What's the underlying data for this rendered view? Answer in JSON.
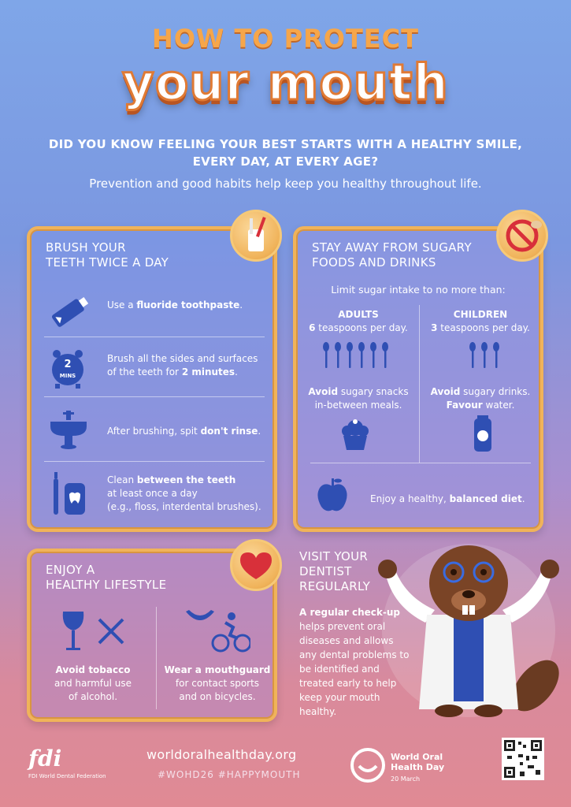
{
  "header": {
    "title_top": "HOW TO PROTECT",
    "title_main": "your mouth",
    "question_line1": "DID YOU KNOW FEELING YOUR BEST STARTS WITH A HEALTHY SMILE,",
    "question_line2": "EVERY DAY, AT EVERY AGE?",
    "subtitle": "Prevention and good habits help keep you healthy throughout life."
  },
  "brush": {
    "title_line1": "BRUSH YOUR",
    "title_line2": "TEETH TWICE A DAY",
    "row1_pre": "Use a ",
    "row1_bold": "fluoride toothpaste",
    "row1_post": ".",
    "row2_line1": "Brush all the sides and surfaces",
    "row2_pre": "of the teeth for ",
    "row2_bold": "2 minutes",
    "row2_post": ".",
    "clock_num": "2",
    "clock_unit": "MINS",
    "row3_pre": "After brushing, spit ",
    "row3_bold": "don't rinse",
    "row3_post": ".",
    "row4_bold": "between the teeth",
    "row4_pre": "Clean ",
    "row4_line2": "at least once a day",
    "row4_line3": "(e.g., floss, interdental brushes)."
  },
  "sugar": {
    "title_line1": "STAY AWAY FROM SUGARY",
    "title_line2": "FOODS AND DRINKS",
    "limit": "Limit sugar intake to no more than:",
    "adults_label": "ADULTS",
    "adults_num": "6",
    "adults_text": " teaspoons per day.",
    "children_label": "CHILDREN",
    "children_num": "3",
    "children_text": " teaspoons per day.",
    "snacks_bold": "Avoid",
    "snacks_line1": " sugary snacks",
    "snacks_line2": "in-between meals.",
    "drinks_bold": "Avoid",
    "drinks_line1": " sugary drinks.",
    "drinks_bold2": "Favour",
    "drinks_line2": " water.",
    "diet_pre": "Enjoy a healthy, ",
    "diet_bold": "balanced diet",
    "diet_post": "."
  },
  "lifestyle": {
    "title_line1": "ENJOY A",
    "title_line2": "HEALTHY LIFESTYLE",
    "tobacco_bold": "Avoid tobacco",
    "tobacco_line2": "and harmful use",
    "tobacco_line3": "of alcohol.",
    "guard_bold": "Wear a mouthguard",
    "guard_line2": "for contact sports",
    "guard_line3": "and on bicycles."
  },
  "visit": {
    "title_line1": "VISIT YOUR",
    "title_line2": "DENTIST",
    "title_line3": "REGULARLY",
    "text_bold": "A regular check-up",
    "text_rest": "helps prevent oral diseases and allows any dental problems to be identified and treated early to help keep your mouth healthy."
  },
  "footer": {
    "url": "worldoralhealthday.org",
    "tags": "#WOHD26     #HAPPYMOUTH",
    "fdi": "fdi",
    "fdi_sub": "FDI World Dental Federation",
    "wohd_name": "World Oral Health Day",
    "wohd_date": "20 March"
  },
  "colors": {
    "accent_orange": "#f0b35a",
    "icon_blue": "#2f4fb3",
    "heart_red": "#d8303a"
  }
}
